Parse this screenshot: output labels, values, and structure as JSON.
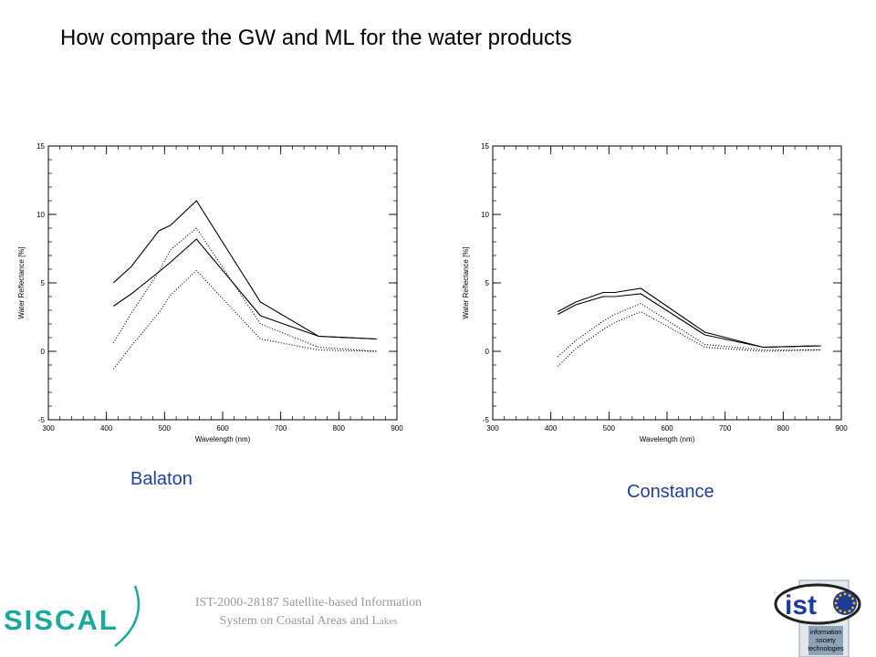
{
  "title": "How compare the GW and ML for the water products",
  "chart_data": [
    {
      "type": "line",
      "caption": "Balaton",
      "xlabel": "Wavelength (nm)",
      "ylabel": "Water Reflectance [%]",
      "xlim": [
        300,
        900
      ],
      "ylim": [
        -5,
        15
      ],
      "xticks": [
        300,
        400,
        500,
        600,
        700,
        800,
        900
      ],
      "yticks": [
        -5,
        0,
        5,
        10,
        15
      ],
      "series": [
        {
          "style": "solid",
          "x": [
            412,
            443,
            490,
            510,
            555,
            665,
            765,
            865
          ],
          "y": [
            5.0,
            6.2,
            8.8,
            9.2,
            11.0,
            3.6,
            1.1,
            0.9
          ]
        },
        {
          "style": "solid",
          "x": [
            412,
            443,
            490,
            510,
            555,
            665,
            765,
            865
          ],
          "y": [
            3.3,
            4.2,
            5.8,
            6.5,
            8.2,
            2.6,
            1.1,
            0.9
          ]
        },
        {
          "style": "dotted",
          "x": [
            412,
            443,
            490,
            510,
            555,
            665,
            765,
            865
          ],
          "y": [
            0.6,
            2.8,
            5.8,
            7.4,
            9.0,
            2.0,
            0.3,
            0.0
          ]
        },
        {
          "style": "dotted",
          "x": [
            412,
            443,
            490,
            510,
            555,
            665,
            765,
            865
          ],
          "y": [
            -1.3,
            0.4,
            2.8,
            4.1,
            5.9,
            0.9,
            0.1,
            0.0
          ]
        }
      ]
    },
    {
      "type": "line",
      "caption": "Constance",
      "xlabel": "Wavelength (nm)",
      "ylabel": "Water Reflectance [%]",
      "xlim": [
        300,
        900
      ],
      "ylim": [
        -5,
        15
      ],
      "xticks": [
        300,
        400,
        500,
        600,
        700,
        800,
        900
      ],
      "yticks": [
        -5,
        0,
        5,
        10,
        15
      ],
      "series": [
        {
          "style": "solid",
          "x": [
            412,
            443,
            490,
            510,
            555,
            665,
            765,
            865
          ],
          "y": [
            2.9,
            3.6,
            4.3,
            4.3,
            4.6,
            1.4,
            0.3,
            0.4
          ]
        },
        {
          "style": "solid",
          "x": [
            412,
            443,
            490,
            510,
            555,
            665,
            765,
            865
          ],
          "y": [
            2.7,
            3.4,
            4.0,
            4.0,
            4.2,
            1.2,
            0.3,
            0.4
          ]
        },
        {
          "style": "dotted",
          "x": [
            412,
            443,
            490,
            510,
            555,
            665,
            765,
            865
          ],
          "y": [
            -0.4,
            0.8,
            2.2,
            2.7,
            3.5,
            0.5,
            0.1,
            0.1
          ]
        },
        {
          "style": "dotted",
          "x": [
            412,
            443,
            490,
            510,
            555,
            665,
            765,
            865
          ],
          "y": [
            -1.1,
            0.2,
            1.6,
            2.1,
            2.9,
            0.3,
            0.0,
            0.1
          ]
        }
      ]
    }
  ],
  "footer": {
    "line1": "IST-2000-28187 Satellite-based Information",
    "line2_main": "System on Coastal Areas and L",
    "line2_small": "akes"
  },
  "logos": {
    "left_text": "SISCAL",
    "right_text": "ist",
    "right_caption": [
      "information",
      "society",
      "technologies"
    ]
  },
  "colors": {
    "title": "#000000",
    "caption": "#1f3f9e",
    "footer": "#9a9a9a",
    "siscal_teal": "#1aa89a",
    "ist_blue": "#1e3c96"
  }
}
